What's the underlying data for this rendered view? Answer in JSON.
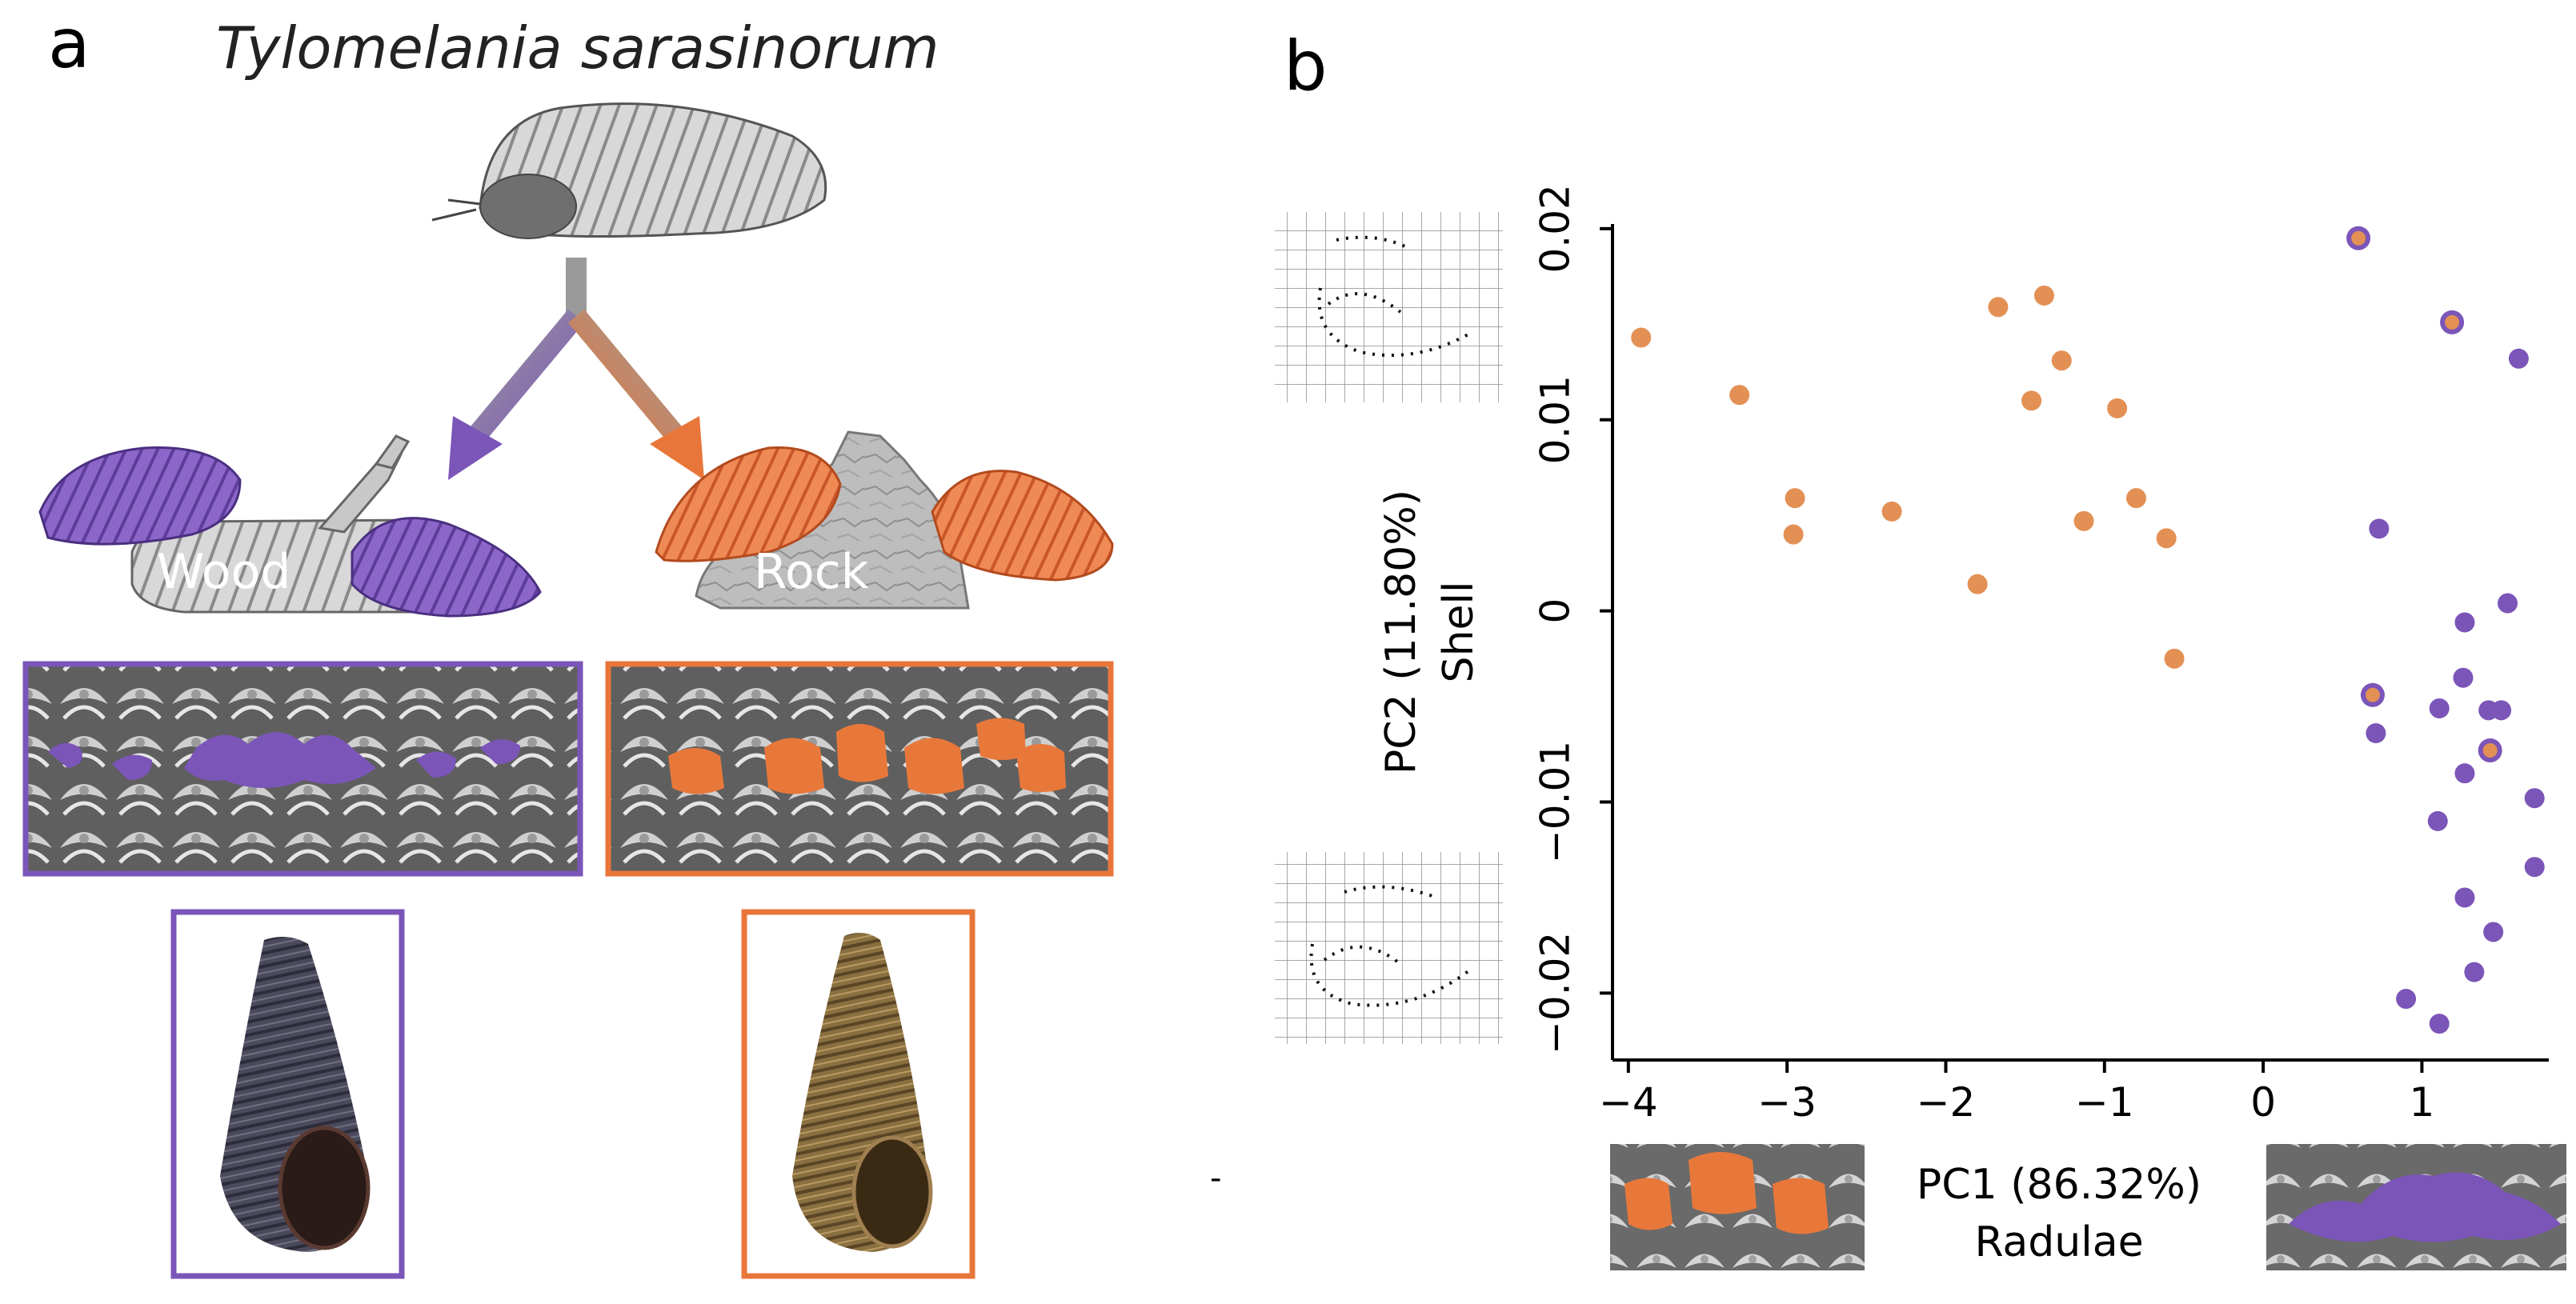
{
  "panel_a": {
    "letter": "a",
    "species": "Tylomelania sarasinorum",
    "substrates": [
      {
        "label": "Wood",
        "color": "#7b55b8"
      },
      {
        "label": "Rock",
        "color": "#e8783a"
      }
    ]
  },
  "panel_b": {
    "letter": "b",
    "stray_mark": "-"
  },
  "colors": {
    "wood": "#7b55b8",
    "rock": "#e39055",
    "rock_frame": "#e8763a"
  },
  "chart_data": {
    "type": "scatter",
    "xlabel": [
      "PC1 (86.32%)",
      "Radulae"
    ],
    "ylabel": [
      "PC2 (11.80%)",
      "Shell"
    ],
    "xlim": [
      -4.1,
      1.85
    ],
    "ylim": [
      -0.0235,
      0.0215
    ],
    "xticks": [
      -4,
      -3,
      -2,
      -1,
      0,
      1
    ],
    "xtick_labels": [
      "−4",
      "−3",
      "−2",
      "−1",
      "0",
      "1"
    ],
    "yticks": [
      0.02,
      0.01,
      0,
      -0.01,
      -0.02
    ],
    "ytick_labels": [
      "0.02",
      "0.01",
      "0",
      "−0.01",
      "−0.02"
    ],
    "series": [
      {
        "color": "#e39055",
        "points": [
          [
            -3.92,
            0.0143
          ],
          [
            -3.3,
            0.0113
          ],
          [
            -2.95,
            0.0059
          ],
          [
            -2.96,
            0.004
          ],
          [
            -2.34,
            0.0052
          ],
          [
            -1.67,
            0.0159
          ],
          [
            -1.38,
            0.0165
          ],
          [
            -1.27,
            0.0131
          ],
          [
            -1.46,
            0.011
          ],
          [
            -0.92,
            0.0106
          ],
          [
            -1.13,
            0.0047
          ],
          [
            -0.8,
            0.0059
          ],
          [
            -0.61,
            0.0038
          ],
          [
            -1.8,
            0.0014
          ],
          [
            -0.56,
            -0.0025
          ]
        ]
      },
      {
        "color": "#7b55b8",
        "points": [
          [
            1.61,
            0.0132
          ],
          [
            0.73,
            0.0043
          ],
          [
            1.54,
            0.0004
          ],
          [
            1.27,
            -0.0006
          ],
          [
            1.26,
            -0.0035
          ],
          [
            1.11,
            -0.0051
          ],
          [
            1.42,
            -0.0052
          ],
          [
            1.5,
            -0.0052
          ],
          [
            0.71,
            -0.0064
          ],
          [
            1.27,
            -0.0085
          ],
          [
            1.71,
            -0.0098
          ],
          [
            1.1,
            -0.011
          ],
          [
            1.71,
            -0.0134
          ],
          [
            1.27,
            -0.015
          ],
          [
            1.45,
            -0.0168
          ],
          [
            1.33,
            -0.0189
          ],
          [
            0.9,
            -0.0203
          ],
          [
            1.11,
            -0.0216
          ]
        ]
      },
      {
        "color": "#7b55b8",
        "fill": "#e39055",
        "points": [
          [
            0.6,
            0.0195
          ],
          [
            1.19,
            0.0151
          ],
          [
            0.69,
            -0.0044
          ],
          [
            1.43,
            -0.0073
          ]
        ]
      }
    ]
  }
}
